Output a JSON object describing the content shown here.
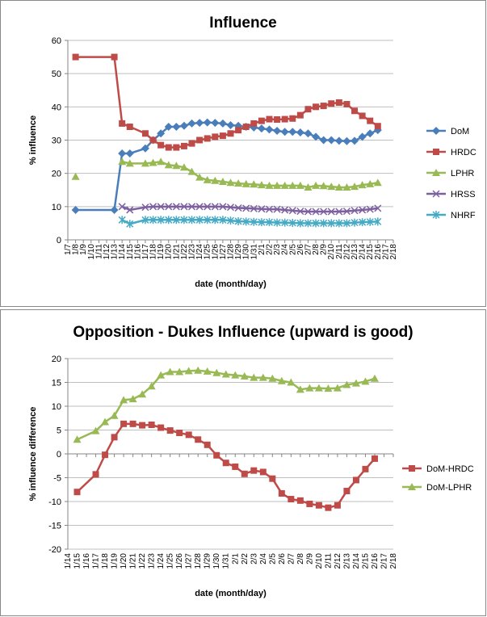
{
  "chart_data": [
    {
      "type": "line",
      "title": "Influence",
      "xlabel": "date (month/day)",
      "ylabel": "% influence",
      "categories": [
        "1/7",
        "1/8",
        "1/9",
        "1/10",
        "1/11",
        "1/12",
        "1/13",
        "1/14",
        "1/15",
        "1/16",
        "1/17",
        "1/18",
        "1/19",
        "1/20",
        "1/21",
        "1/22",
        "1/23",
        "1/24",
        "1/25",
        "1/26",
        "1/27",
        "1/28",
        "1/29",
        "1/30",
        "1/31",
        "2/1",
        "2/2",
        "2/3",
        "2/4",
        "2/5",
        "2/6",
        "2/7",
        "2/8",
        "2/9",
        "2/10",
        "2/11",
        "2/12",
        "2/13",
        "2/14",
        "2/15",
        "2/16",
        "2/17",
        "2/18"
      ],
      "x": [
        "1/8",
        "1/13",
        "1/14",
        "1/15",
        "1/17",
        "1/18",
        "1/19",
        "1/20",
        "1/21",
        "1/22",
        "1/23",
        "1/24",
        "1/25",
        "1/26",
        "1/27",
        "1/28",
        "1/29",
        "1/30",
        "1/31",
        "2/1",
        "2/2",
        "2/3",
        "2/4",
        "2/5",
        "2/6",
        "2/7",
        "2/8",
        "2/9",
        "2/10",
        "2/11",
        "2/12",
        "2/13",
        "2/14",
        "2/15",
        "2/16"
      ],
      "ylim": [
        0,
        60
      ],
      "yticks": [
        0,
        10,
        20,
        30,
        40,
        50,
        60
      ],
      "grid": true,
      "series": [
        {
          "name": "DoM",
          "color": "#4a7ebb",
          "marker": "diamond",
          "values": [
            9,
            9,
            26,
            26,
            27.5,
            30,
            32,
            34,
            34,
            34.3,
            35,
            35.2,
            35.3,
            35.2,
            35,
            34.5,
            34.3,
            34,
            33.8,
            33.5,
            33.2,
            32.8,
            32.5,
            32.5,
            32.3,
            32,
            31,
            30,
            30,
            29.8,
            29.7,
            29.8,
            31,
            32,
            33
          ]
        },
        {
          "name": "HRDC",
          "color": "#be4b48",
          "marker": "square",
          "values": [
            55,
            55,
            35,
            34,
            32,
            30,
            28.5,
            27.8,
            27.8,
            28.2,
            29,
            30,
            30.5,
            31,
            31.3,
            32,
            33,
            34,
            35,
            35.8,
            36.3,
            36.2,
            36.3,
            36.5,
            37.5,
            39.3,
            40,
            40.3,
            41,
            41.3,
            40.8,
            38.8,
            37.3,
            35.8,
            34.2
          ]
        },
        {
          "name": "LPHR",
          "color": "#98b954",
          "marker": "triangle",
          "values": [
            19,
            null,
            23.5,
            23,
            23,
            23.2,
            23.5,
            22.5,
            22.3,
            21.8,
            20.5,
            18.8,
            18,
            17.8,
            17.5,
            17.2,
            17,
            16.8,
            16.7,
            16.5,
            16.3,
            16.3,
            16.3,
            16.3,
            16.3,
            15.8,
            16.3,
            16.2,
            16,
            15.8,
            15.8,
            16,
            16.5,
            16.8,
            17.2
          ]
        },
        {
          "name": "HRSS",
          "color": "#7d60a0",
          "marker": "x",
          "values": [
            null,
            null,
            10,
            9,
            9.8,
            10,
            10,
            10,
            10,
            10,
            10,
            10,
            10,
            10,
            10,
            9.8,
            9.6,
            9.5,
            9.4,
            9.3,
            9.2,
            9.2,
            9,
            8.8,
            8.6,
            8.5,
            8.5,
            8.5,
            8.5,
            8.5,
            8.6,
            8.8,
            9,
            9.2,
            9.5
          ]
        },
        {
          "name": "NHRF",
          "color": "#46aac5",
          "marker": "star",
          "values": [
            null,
            null,
            6,
            4.8,
            6,
            6,
            6,
            6,
            6,
            6,
            6,
            6,
            6,
            6,
            6,
            5.8,
            5.6,
            5.5,
            5.4,
            5.3,
            5.3,
            5.2,
            5.2,
            5.1,
            5,
            5,
            5,
            5,
            5,
            5,
            5,
            5.2,
            5.3,
            5.4,
            5.5
          ]
        }
      ]
    },
    {
      "type": "line",
      "title": "Opposition - Dukes Influence (upward is good)",
      "xlabel": "date (month/day)",
      "ylabel": "% influence difference",
      "categories": [
        "1/14",
        "1/15",
        "1/16",
        "1/17",
        "1/18",
        "1/19",
        "1/20",
        "1/21",
        "1/22",
        "1/23",
        "1/24",
        "1/25",
        "1/26",
        "1/27",
        "1/28",
        "1/29",
        "1/30",
        "1/31",
        "2/1",
        "2/2",
        "2/3",
        "2/4",
        "2/5",
        "2/6",
        "2/7",
        "2/8",
        "2/9",
        "2/10",
        "2/11",
        "2/12",
        "2/13",
        "2/14",
        "2/15",
        "2/16",
        "2/17",
        "2/18"
      ],
      "x": [
        "1/15",
        "1/17",
        "1/18",
        "1/19",
        "1/20",
        "1/21",
        "1/22",
        "1/23",
        "1/24",
        "1/25",
        "1/26",
        "1/27",
        "1/28",
        "1/29",
        "1/30",
        "1/31",
        "2/1",
        "2/2",
        "2/3",
        "2/4",
        "2/5",
        "2/6",
        "2/7",
        "2/8",
        "2/9",
        "2/10",
        "2/11",
        "2/12",
        "2/13",
        "2/14",
        "2/15",
        "2/16"
      ],
      "ylim": [
        -20,
        20
      ],
      "yticks": [
        -20,
        -15,
        -10,
        -5,
        0,
        5,
        10,
        15,
        20
      ],
      "grid": true,
      "series": [
        {
          "name": "DoM-HRDC",
          "color": "#be4b48",
          "marker": "square",
          "values": [
            -8,
            -4.3,
            -0.2,
            3.5,
            6.3,
            6.3,
            6,
            6.1,
            5.5,
            4.9,
            4.4,
            4,
            3,
            1.9,
            -0.3,
            -1.9,
            -2.7,
            -4.2,
            -3.5,
            -3.8,
            -5.2,
            -8.3,
            -9.5,
            -9.8,
            -10.5,
            -10.8,
            -11.3,
            -10.8,
            -7.8,
            -5.5,
            -3.2,
            -1
          ]
        },
        {
          "name": "DoM-LPHR",
          "color": "#98b954",
          "marker": "triangle",
          "values": [
            3,
            4.8,
            6.7,
            8,
            11.3,
            11.5,
            12.5,
            14.2,
            16.5,
            17.2,
            17.2,
            17.4,
            17.5,
            17.3,
            17,
            16.7,
            16.5,
            16.3,
            16,
            16,
            15.8,
            15.3,
            15,
            13.5,
            13.8,
            13.8,
            13.7,
            13.8,
            14.5,
            14.8,
            15.2,
            15.8
          ]
        }
      ]
    }
  ]
}
